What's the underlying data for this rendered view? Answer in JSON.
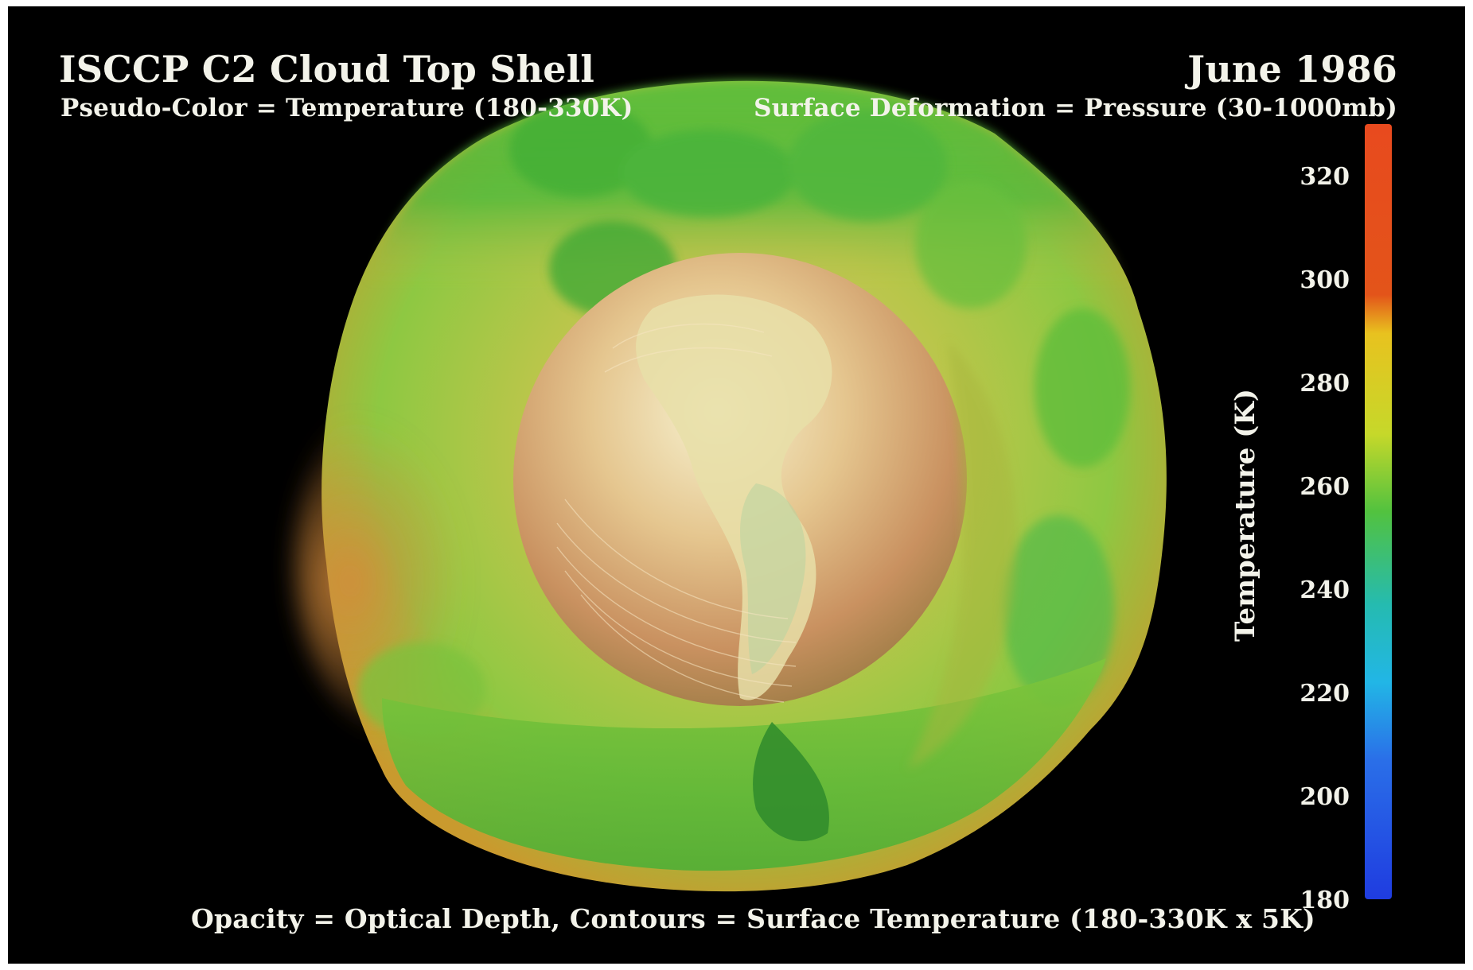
{
  "title": "ISCCP C2 Cloud Top Shell",
  "subtitle_left": "Pseudo-Color = Temperature (180-330K)",
  "date": "June 1986",
  "subtitle_right": "Surface Deformation = Pressure (30-1000mb)",
  "footer": "Opacity = Optical Depth, Contours = Surface Temperature (180-330K x 5K)",
  "colorbar": {
    "label": "Temperature (K)",
    "ticks": [
      "320",
      "300",
      "280",
      "260",
      "240",
      "220",
      "200",
      "180"
    ],
    "colors": [
      "#e84a1e",
      "#e3541a",
      "#e8c21f",
      "#9fd12a",
      "#38b84c",
      "#1fb8c8",
      "#2a7be8",
      "#1f3ce0"
    ]
  },
  "colors": {
    "background": "#000000",
    "text": "#f3f3ea"
  }
}
